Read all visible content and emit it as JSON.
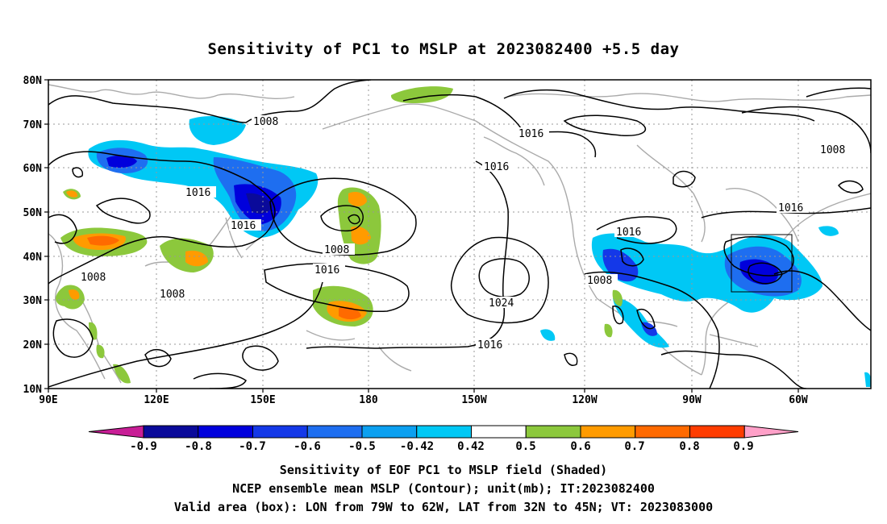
{
  "title": "Sensitivity of PC1 to MSLP at 2023082400 +5.5 day",
  "lat_labels": [
    "80N",
    "70N",
    "60N",
    "50N",
    "40N",
    "30N",
    "20N",
    "10N"
  ],
  "lon_labels": [
    "90E",
    "120E",
    "150E",
    "180",
    "150W",
    "120W",
    "90W",
    "60W"
  ],
  "contour_labels": {
    "c1": "1008",
    "c2": "1016",
    "c3": "1016",
    "c4": "1016",
    "c5": "1008",
    "c6": "1016",
    "c7": "1008",
    "c8": "1008",
    "c9": "1016",
    "c10": "1016",
    "c11": "1024",
    "c12": "1016",
    "c13": "1008",
    "c14": "1016",
    "c15": "1016",
    "c16": "1008"
  },
  "colorbar": {
    "labels": [
      "-0.9",
      "-0.8",
      "-0.7",
      "-0.6",
      "-0.5",
      "-0.42",
      "0.42",
      "0.5",
      "0.6",
      "0.7",
      "0.8",
      "0.9"
    ],
    "colors": [
      "#0a0a9a",
      "#0000dc",
      "#1438e8",
      "#1e6ef0",
      "#0ca0f0",
      "#00c8f5",
      "#ffffff",
      "#8cc83c",
      "#ff9b00",
      "#ff6a00",
      "#ff3c00",
      "#ff0000"
    ],
    "left_cap_color": "#c81e96",
    "right_cap_color": "#ffa0c8"
  },
  "captions": {
    "line1": "Sensitivity of EOF PC1 to MSLP field (Shaded)",
    "line2": "NCEP ensemble mean MSLP (Contour); unit(mb); IT:2023082400",
    "line3": "Valid area (box): LON from 79W to 62W, LAT from 32N to 45N; VT: 2023083000"
  }
}
